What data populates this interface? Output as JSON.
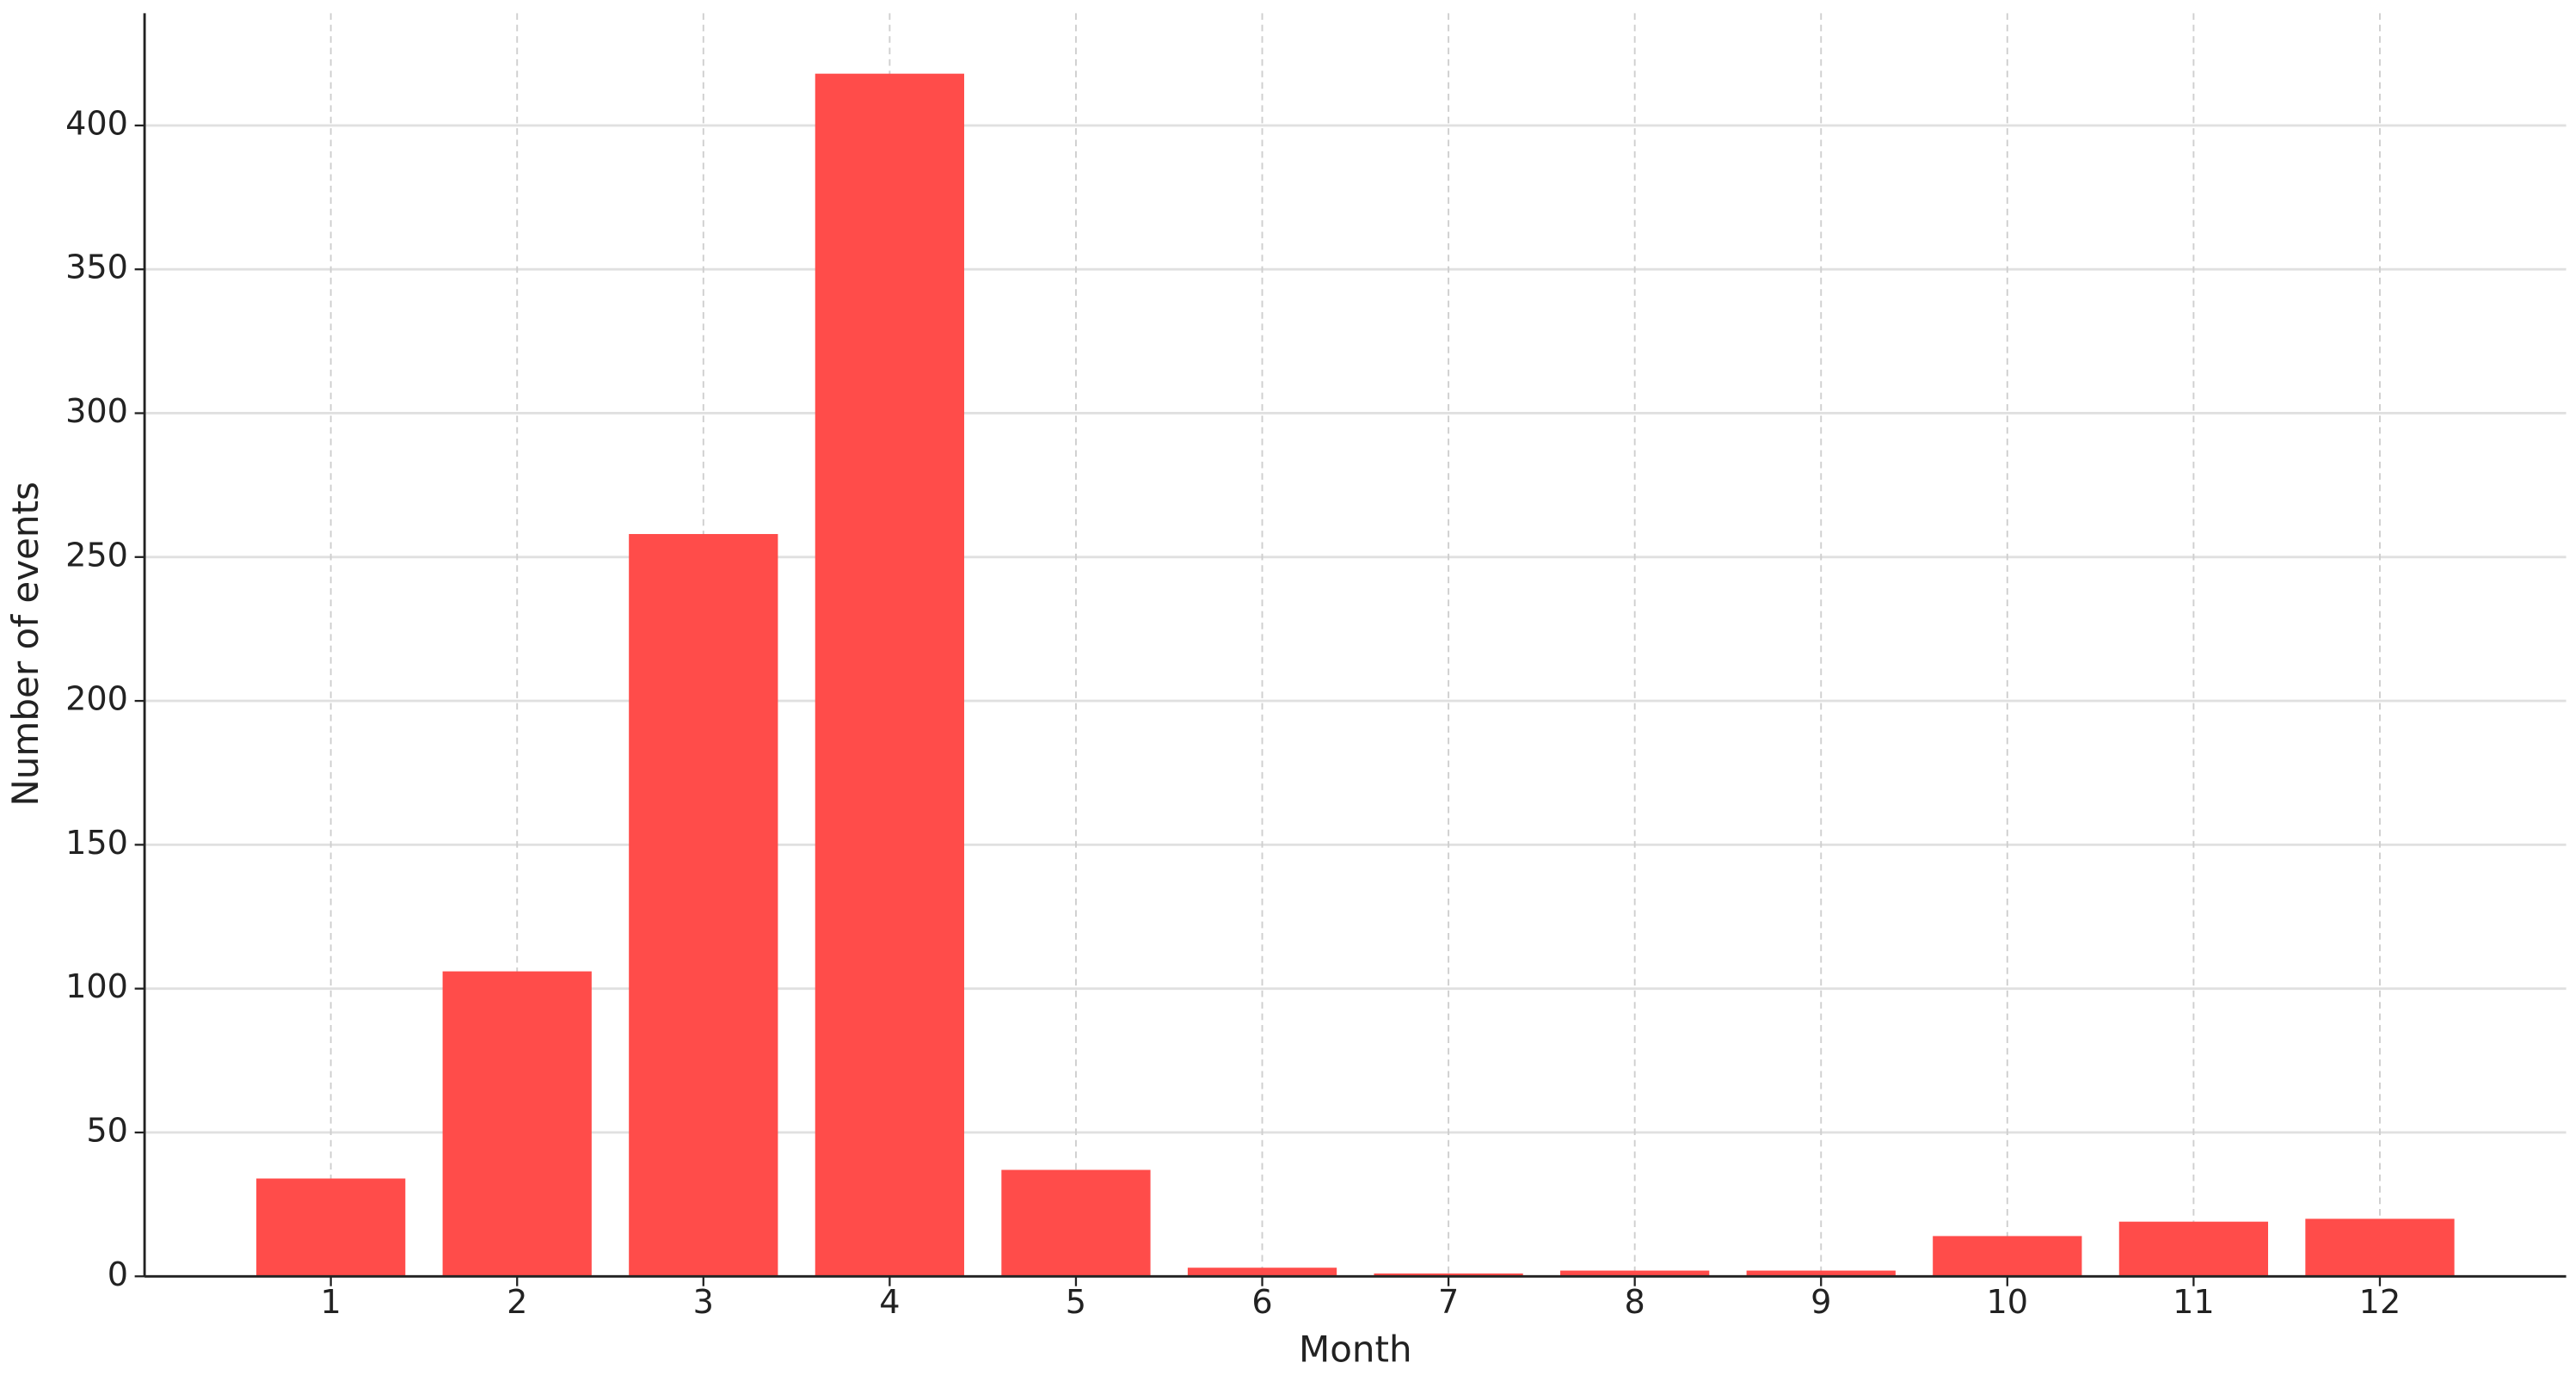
{
  "chart_data": {
    "type": "bar",
    "x": [
      1,
      2,
      3,
      4,
      5,
      6,
      7,
      8,
      9,
      10,
      11,
      12
    ],
    "values": [
      34,
      106,
      258,
      418,
      37,
      3,
      1,
      2,
      2,
      14,
      19,
      20
    ],
    "color": "#ff4c4a",
    "xlabel": "Month",
    "ylabel": "Number of events",
    "xlim": [
      0,
      13
    ],
    "xticks": [
      1,
      2,
      3,
      4,
      5,
      6,
      7,
      8,
      9,
      10,
      11,
      12
    ],
    "ylim": [
      0,
      439
    ],
    "yticks": [
      0,
      50,
      100,
      150,
      200,
      250,
      300,
      350,
      400
    ],
    "grid": true
  }
}
